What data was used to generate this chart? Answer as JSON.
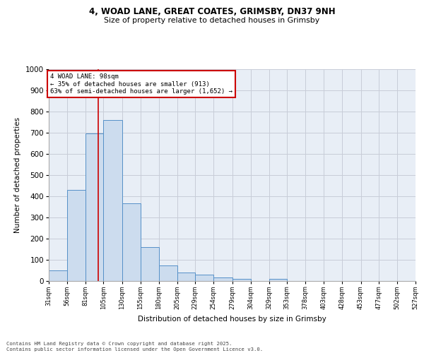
{
  "title_line1": "4, WOAD LANE, GREAT COATES, GRIMSBY, DN37 9NH",
  "title_line2": "Size of property relative to detached houses in Grimsby",
  "xlabel": "Distribution of detached houses by size in Grimsby",
  "ylabel": "Number of detached properties",
  "bins": [
    31,
    56,
    81,
    105,
    130,
    155,
    180,
    205,
    229,
    254,
    279,
    304,
    329,
    353,
    378,
    403,
    428,
    453,
    477,
    502,
    527
  ],
  "bar_heights": [
    50,
    430,
    695,
    760,
    365,
    157,
    72,
    38,
    28,
    15,
    10,
    0,
    7,
    0,
    0,
    0,
    0,
    0,
    0,
    0
  ],
  "bar_color": "#ccdcee",
  "bar_edge_color": "#5590c8",
  "vline_x": 98,
  "vline_color": "#cc0000",
  "annotation_text": "4 WOAD LANE: 98sqm\n← 35% of detached houses are smaller (913)\n63% of semi-detached houses are larger (1,652) →",
  "annotation_box_edgecolor": "#cc0000",
  "ylim": [
    0,
    1000
  ],
  "yticks": [
    0,
    100,
    200,
    300,
    400,
    500,
    600,
    700,
    800,
    900,
    1000
  ],
  "grid_color": "#c8ccd8",
  "bg_color": "#e8eef6",
  "footer_line1": "Contains HM Land Registry data © Crown copyright and database right 2025.",
  "footer_line2": "Contains public sector information licensed under the Open Government Licence v3.0.",
  "tick_labels": [
    "31sqm",
    "56sqm",
    "81sqm",
    "105sqm",
    "130sqm",
    "155sqm",
    "180sqm",
    "205sqm",
    "229sqm",
    "254sqm",
    "279sqm",
    "304sqm",
    "329sqm",
    "353sqm",
    "378sqm",
    "403sqm",
    "428sqm",
    "453sqm",
    "477sqm",
    "502sqm",
    "527sqm"
  ]
}
